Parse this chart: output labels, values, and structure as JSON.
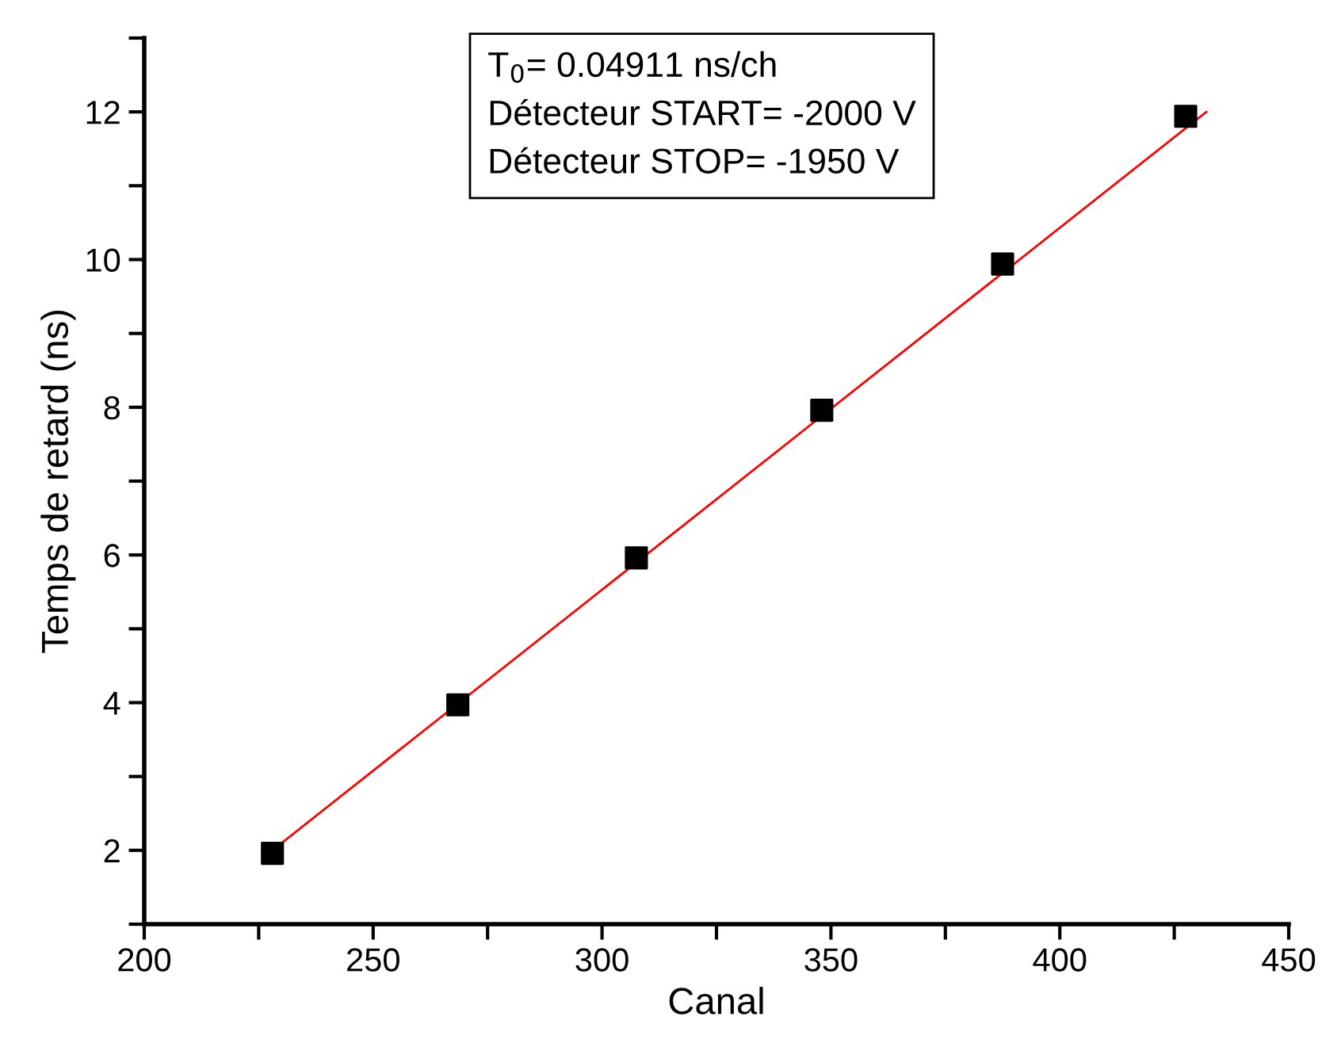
{
  "chart_data": {
    "type": "scatter",
    "xlabel": "Canal",
    "ylabel": "Temps de retard (ns)",
    "annotations": [
      "T$_{0}$= 0.04911 ns/ch\nDétecteur START= -2000 V\nDétecteur STOP= -1950 V"
    ],
    "xlim": [
      200,
      450
    ],
    "ylim": [
      1,
      13
    ],
    "xticks": [
      200,
      {
        "value": 225,
        "label": null
      },
      250,
      {
        "value": 275,
        "label": null
      },
      300,
      {
        "value": 325,
        "label": null
      },
      350,
      {
        "value": 375,
        "label": null
      },
      400,
      {
        "value": 425,
        "label": null
      },
      450
    ],
    "yticks": [
      {
        "value": 1,
        "label": null
      },
      2,
      {
        "value": 3,
        "label": null
      },
      4,
      {
        "value": 5,
        "label": null
      },
      6,
      {
        "value": 7,
        "label": null
      },
      8,
      {
        "value": 9,
        "label": null
      },
      10,
      {
        "value": 11,
        "label": null
      },
      12,
      {
        "value": 13,
        "label": null
      }
    ],
    "grid": false,
    "legend": false,
    "series": [
      {
        "type": "line",
        "color": "#ff0000",
        "x": [
          228,
          432
        ],
        "values": [
          2.0,
          12.0
        ],
        "marker": "none",
        "line_style": "solid"
      },
      {
        "color": "#000000",
        "x": [
          228,
          268.5,
          307.5,
          348,
          387.5,
          427.5
        ],
        "values": [
          1.96,
          3.97,
          5.96,
          7.96,
          9.94,
          11.94
        ],
        "marker": "square"
      }
    ]
  }
}
